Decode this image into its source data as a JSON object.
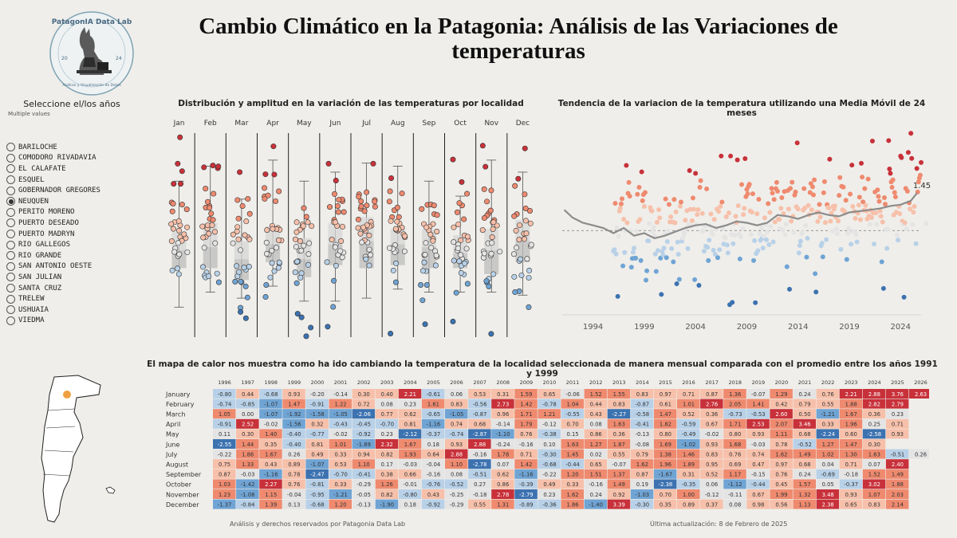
{
  "page": {
    "title": "Cambio Climático en la Patagonia: Análisis de las Variaciones de temperaturas",
    "logo_text": "PatagonIA Data Lab",
    "logo_sub": "Análisis y Visualización de Datos",
    "logo_left": "20",
    "logo_right": "24"
  },
  "filter": {
    "title": "Seleccione el/los años",
    "subtitle": "Multiple values",
    "selected": "NEUQUEN",
    "options": [
      "BARILOCHE",
      "COMODORO RIVADAVIA",
      "EL CALAFATE",
      "ESQUEL",
      "GOBERNADOR GREGORES",
      "NEUQUEN",
      "PERITO MORENO",
      "PUERTO DESEADO",
      "PUERTO MADRYN",
      "RIO GALLEGOS",
      "RIO GRANDE",
      "SAN ANTONIO OESTE",
      "SAN JULIAN",
      "SANTA CRUZ",
      "TRELEW",
      "USHUAIA",
      "VIEDMA"
    ]
  },
  "colors": {
    "warm": "#c8313a",
    "warm_mid": "#ef8a6f",
    "warm_light": "#f7c0aa",
    "cool": "#3c72b0",
    "cool_mid": "#6fa4d4",
    "cool_light": "#b8d1e8",
    "neutral": "#e4e4e4",
    "line": "#8c8c8c",
    "map_dot": "#f0a040"
  },
  "charts": {
    "boxplot": {
      "title": "Distribución y amplitud en la variación de las temperaturas por localidad",
      "type": "boxplot",
      "months": [
        "Jan",
        "Feb",
        "Mar",
        "Apr",
        "May",
        "Jun",
        "Jul",
        "Aug",
        "Sep",
        "Oct",
        "Nov",
        "Dec"
      ],
      "ylim": [
        -2.9,
        3.9
      ],
      "stats": [
        {
          "min": -1.9,
          "q1": -0.6,
          "median": 0.0,
          "q3": 0.6,
          "max": 2.3
        },
        {
          "min": -1.4,
          "q1": -0.6,
          "median": 0.1,
          "q3": 0.9,
          "max": 2.8
        },
        {
          "min": -1.6,
          "q1": -1.0,
          "median": -0.3,
          "q3": 0.3,
          "max": 1.7
        },
        {
          "min": -1.2,
          "q1": -0.4,
          "median": 0.2,
          "q3": 0.8,
          "max": 3.0
        },
        {
          "min": -1.7,
          "q1": -0.9,
          "median": -0.3,
          "q3": 0.4,
          "max": 2.3
        },
        {
          "min": -1.7,
          "q1": -0.5,
          "median": 0.2,
          "q3": 0.9,
          "max": 2.6
        },
        {
          "min": -1.6,
          "q1": -0.6,
          "median": 0.3,
          "q3": 1.1,
          "max": 2.9
        },
        {
          "min": -1.3,
          "q1": -0.5,
          "median": 0.2,
          "q3": 0.7,
          "max": 2.8
        },
        {
          "min": -1.4,
          "q1": -0.6,
          "median": 0.1,
          "q3": 0.7,
          "max": 2.3
        },
        {
          "min": -1.4,
          "q1": -0.6,
          "median": -0.1,
          "q3": 0.5,
          "max": 1.8
        },
        {
          "min": -1.4,
          "q1": -0.8,
          "median": 0.0,
          "q3": 0.7,
          "max": 3.0
        },
        {
          "min": -1.5,
          "q1": -0.4,
          "median": 0.3,
          "q3": 1.0,
          "max": 2.6
        }
      ]
    },
    "trend": {
      "title": "Tendencia de la variacion de la temperatura utilizando una Media Móvil de 24 meses",
      "type": "scatter+line",
      "xticks": [
        "1994",
        "1999",
        "2004",
        "2009",
        "2014",
        "2019",
        "2024"
      ],
      "xlim": [
        1991,
        2026
      ],
      "ylim": [
        -3.2,
        4.2
      ],
      "end_label": "1.45",
      "moving_average": [
        {
          "x": 1991.2,
          "y": 0.8
        },
        {
          "x": 1992,
          "y": 0.5
        },
        {
          "x": 1993,
          "y": 0.3
        },
        {
          "x": 1994,
          "y": 0.2
        },
        {
          "x": 1995,
          "y": 0.1
        },
        {
          "x": 1996,
          "y": -0.1
        },
        {
          "x": 1997,
          "y": 0.1
        },
        {
          "x": 1998,
          "y": -0.2
        },
        {
          "x": 1999,
          "y": -0.1
        },
        {
          "x": 2000,
          "y": -0.3
        },
        {
          "x": 2001,
          "y": -0.2
        },
        {
          "x": 2002,
          "y": -0.05
        },
        {
          "x": 2003,
          "y": 0.1
        },
        {
          "x": 2004,
          "y": 0.2
        },
        {
          "x": 2005,
          "y": 0.25
        },
        {
          "x": 2006,
          "y": 0.1
        },
        {
          "x": 2007,
          "y": 0.2
        },
        {
          "x": 2008,
          "y": 0.35
        },
        {
          "x": 2009,
          "y": 0.3
        },
        {
          "x": 2010,
          "y": 0.2
        },
        {
          "x": 2011,
          "y": 0.3
        },
        {
          "x": 2012,
          "y": 0.6
        },
        {
          "x": 2013,
          "y": 0.55
        },
        {
          "x": 2014,
          "y": 0.45
        },
        {
          "x": 2015,
          "y": 0.6
        },
        {
          "x": 2016,
          "y": 0.7
        },
        {
          "x": 2017,
          "y": 0.6
        },
        {
          "x": 2018,
          "y": 0.55
        },
        {
          "x": 2019,
          "y": 0.7
        },
        {
          "x": 2020,
          "y": 0.75
        },
        {
          "x": 2021,
          "y": 0.8
        },
        {
          "x": 2022,
          "y": 0.85
        },
        {
          "x": 2023,
          "y": 0.95
        },
        {
          "x": 2024,
          "y": 1.0
        },
        {
          "x": 2025,
          "y": 1.15
        },
        {
          "x": 2025.6,
          "y": 1.45
        }
      ]
    },
    "heatmap": {
      "title": "El mapa de calor nos muestra como ha ido cambiando la temperatura de la localidad seleccionada de manera mensual comparada con el promedio entre los años 1991 y 1999",
      "type": "heatmap",
      "years": [
        "1996",
        "1997",
        "1998",
        "1999",
        "2000",
        "2001",
        "2002",
        "2003",
        "2004",
        "2005",
        "2006",
        "2007",
        "2008",
        "2009",
        "2010",
        "2011",
        "2012",
        "2013",
        "2014",
        "2015",
        "2016",
        "2017",
        "2018",
        "2019",
        "2020",
        "2021",
        "2022",
        "2023",
        "2024",
        "2025",
        "2026"
      ],
      "months": [
        "January",
        "February",
        "March",
        "April",
        "May",
        "June",
        "July",
        "August",
        "September",
        "October",
        "November",
        "December"
      ],
      "values": [
        [
          "-0.80",
          "0.44",
          "-0.68",
          "0.93",
          "-0.20",
          "-0.14",
          "0.30",
          "0.40",
          "2.21",
          "-0.61",
          "0.06",
          "0.53",
          "0.31",
          "1.59",
          "0.65",
          "-0.06",
          "1.52",
          "1.55",
          "0.83",
          "0.97",
          "0.71",
          "0.87",
          "1.36",
          "-0.07",
          "1.29",
          "0.24",
          "0.76",
          "2.21",
          "2.88",
          "3.76",
          "2.63"
        ],
        [
          "-0.74",
          "-0.85",
          "-1.07",
          "1.47",
          "-0.91",
          "1.22",
          "0.72",
          "0.08",
          "0.23",
          "1.61",
          "0.83",
          "-0.56",
          "2.73",
          "1.42",
          "-0.78",
          "1.04",
          "0.44",
          "0.83",
          "-0.87",
          "0.61",
          "1.01",
          "2.76",
          "2.05",
          "1.41",
          "0.42",
          "0.79",
          "0.55",
          "1.88",
          "2.82",
          "2.79",
          ""
        ],
        [
          "1.05",
          "0.00",
          "-1.07",
          "-1.92",
          "-1.58",
          "-1.05",
          "-2.06",
          "0.77",
          "0.62",
          "-0.65",
          "-1.05",
          "-0.87",
          "0.96",
          "1.71",
          "1.21",
          "-0.55",
          "0.43",
          "-2.27",
          "-0.58",
          "1.47",
          "0.52",
          "0.36",
          "-0.73",
          "-0.53",
          "2.60",
          "0.50",
          "-1.21",
          "1.67",
          "0.36",
          "0.23",
          ""
        ],
        [
          "-0.91",
          "2.52",
          "-0.02",
          "-1.56",
          "0.32",
          "-0.43",
          "-0.45",
          "-0.70",
          "0.81",
          "-1.16",
          "0.74",
          "0.68",
          "-0.14",
          "1.79",
          "-0.12",
          "0.70",
          "0.08",
          "1.63",
          "-0.41",
          "1.82",
          "-0.59",
          "0.67",
          "1.71",
          "2.53",
          "2.07",
          "3.46",
          "0.33",
          "1.96",
          "0.25",
          "0.71",
          ""
        ],
        [
          "0.11",
          "0.30",
          "1.40",
          "-0.40",
          "-0.77",
          "-0.02",
          "-0.92",
          "0.23",
          "-2.12",
          "-0.37",
          "-0.74",
          "-2.87",
          "-1.10",
          "0.76",
          "-0.38",
          "0.15",
          "0.86",
          "0.36",
          "-0.13",
          "0.80",
          "-0.49",
          "-0.02",
          "0.80",
          "0.93",
          "1.11",
          "0.68",
          "-2.24",
          "0.60",
          "-2.58",
          "0.93",
          ""
        ],
        [
          "-2.55",
          "1.44",
          "0.35",
          "-0.40",
          "0.81",
          "1.01",
          "-1.89",
          "2.32",
          "1.67",
          "0.18",
          "0.93",
          "2.88",
          "-0.24",
          "-0.16",
          "0.10",
          "1.63",
          "1.27",
          "1.87",
          "-0.08",
          "1.69",
          "-1.02",
          "0.93",
          "1.68",
          "-0.03",
          "0.78",
          "-0.52",
          "1.27",
          "1.47",
          "0.30",
          "",
          ""
        ],
        [
          "-0.22",
          "1.86",
          "1.67",
          "0.26",
          "0.49",
          "0.33",
          "0.94",
          "0.82",
          "1.93",
          "0.64",
          "2.88",
          "-0.16",
          "1.78",
          "0.71",
          "-0.30",
          "1.45",
          "0.02",
          "0.55",
          "0.79",
          "1.38",
          "1.46",
          "0.83",
          "0.76",
          "0.74",
          "1.62",
          "1.49",
          "1.02",
          "1.30",
          "1.63",
          "-0.51",
          "0.26"
        ],
        [
          "0.75",
          "1.33",
          "0.43",
          "0.89",
          "-1.07",
          "0.53",
          "1.10",
          "0.17",
          "-0.03",
          "-0.04",
          "1.10",
          "-2.78",
          "0.07",
          "1.42",
          "-0.68",
          "-0.44",
          "0.65",
          "-0.07",
          "1.62",
          "1.96",
          "1.89",
          "0.95",
          "0.69",
          "0.47",
          "0.97",
          "0.68",
          "0.04",
          "0.71",
          "0.07",
          "2.40",
          ""
        ],
        [
          "0.87",
          "-0.03",
          "-1.16",
          "0.78",
          "-2.47",
          "-0.70",
          "-0.41",
          "0.38",
          "0.66",
          "-0.16",
          "0.08",
          "-0.51",
          "0.62",
          "-1.16",
          "-0.22",
          "1.20",
          "1.51",
          "1.37",
          "0.87",
          "-1.67",
          "0.31",
          "0.52",
          "1.17",
          "-0.15",
          "0.76",
          "0.24",
          "-0.69",
          "-0.18",
          "1.52",
          "1.49",
          ""
        ],
        [
          "1.03",
          "-1.42",
          "2.27",
          "0.76",
          "-0.81",
          "0.33",
          "-0.29",
          "1.26",
          "-0.01",
          "-0.76",
          "-0.52",
          "0.27",
          "0.86",
          "-0.39",
          "0.49",
          "0.33",
          "-0.16",
          "1.49",
          "0.19",
          "-2.38",
          "-0.35",
          "0.06",
          "-1.12",
          "-0.44",
          "0.45",
          "1.57",
          "0.05",
          "-0.37",
          "3.02",
          "1.88",
          ""
        ],
        [
          "1.23",
          "-1.08",
          "1.15",
          "-0.04",
          "-0.95",
          "-1.21",
          "-0.05",
          "0.82",
          "-0.80",
          "0.43",
          "-0.25",
          "-0.18",
          "2.78",
          "-2.79",
          "0.23",
          "1.62",
          "0.24",
          "0.92",
          "-1.03",
          "0.70",
          "1.00",
          "-0.12",
          "-0.11",
          "0.67",
          "1.99",
          "1.32",
          "3.48",
          "0.93",
          "1.07",
          "2.03",
          ""
        ],
        [
          "-1.37",
          "-0.84",
          "1.39",
          "0.13",
          "-0.68",
          "1.20",
          "-0.13",
          "-1.90",
          "0.18",
          "-0.92",
          "-0.29",
          "0.55",
          "1.31",
          "-0.89",
          "-0.36",
          "1.86",
          "-1.40",
          "3.39",
          "-0.30",
          "0.35",
          "0.89",
          "0.37",
          "0.08",
          "0.98",
          "0.56",
          "1.13",
          "2.38",
          "0.65",
          "0.83",
          "2.14",
          ""
        ]
      ]
    }
  },
  "footer": {
    "left": "Análisis y derechos reservados por Patagonia Data Lab",
    "right": "Última actualización: 8 de Febrero de 2025"
  }
}
